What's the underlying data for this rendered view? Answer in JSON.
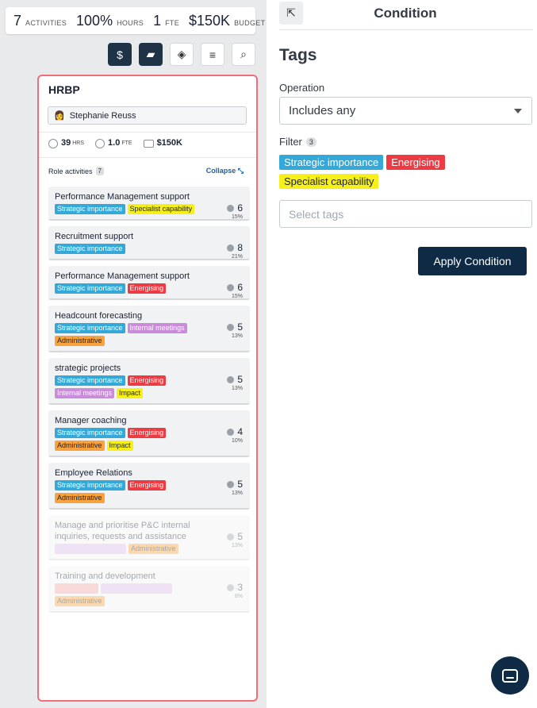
{
  "summary": {
    "activities_num": "7",
    "activities_unit": "ACTIVITIES",
    "hours_num": "100%",
    "hours_unit": "HOURS",
    "fte_num": "1",
    "fte_unit": "FTE",
    "budget_num": "$150K",
    "budget_unit": "BUDGET"
  },
  "toolbar": {
    "buttons": [
      {
        "icon": "dollar-icon",
        "glyph": "$",
        "active": true
      },
      {
        "icon": "tag-icon",
        "glyph": "▰",
        "active": true
      },
      {
        "icon": "layers-icon",
        "glyph": "◈",
        "active": false
      },
      {
        "icon": "filter-icon",
        "glyph": "≡",
        "active": false
      },
      {
        "icon": "search-icon",
        "glyph": "⌕",
        "active": false
      }
    ]
  },
  "role": {
    "title": "HRBP",
    "person": "Stephanie Reuss",
    "hours_value": "39",
    "hours_unit": "HRS",
    "fte_value": "1.0",
    "fte_unit": "FTE",
    "budget_value": "$150K",
    "activities_label": "Role activities",
    "activities_count": "7",
    "collapse_label": "Collapse"
  },
  "activities": [
    {
      "name": "Performance Management support",
      "hours": "6",
      "pct": "15%",
      "faded": false,
      "tags": [
        {
          "label": "Strategic importance",
          "color": "blue"
        },
        {
          "label": "Specialist capability",
          "color": "yellow"
        }
      ]
    },
    {
      "name": "Recruitment support",
      "hours": "8",
      "pct": "21%",
      "faded": false,
      "tags": [
        {
          "label": "Strategic importance",
          "color": "blue"
        }
      ]
    },
    {
      "name": "Performance Management support",
      "hours": "6",
      "pct": "15%",
      "faded": false,
      "tags": [
        {
          "label": "Strategic importance",
          "color": "blue"
        },
        {
          "label": "Energising",
          "color": "red"
        }
      ]
    },
    {
      "name": "Headcount forecasting",
      "hours": "5",
      "pct": "13%",
      "faded": false,
      "tags": [
        {
          "label": "Strategic importance",
          "color": "blue"
        },
        {
          "label": "Internal meetings",
          "color": "purple"
        },
        {
          "label": "Administrative",
          "color": "orange"
        }
      ]
    },
    {
      "name": "strategic projects",
      "hours": "5",
      "pct": "13%",
      "faded": false,
      "tags": [
        {
          "label": "Strategic importance",
          "color": "blue"
        },
        {
          "label": "Energising",
          "color": "red"
        },
        {
          "label": "Internal meetings",
          "color": "purple"
        },
        {
          "label": "Impact",
          "color": "yellow"
        }
      ]
    },
    {
      "name": "Manager coaching",
      "hours": "4",
      "pct": "10%",
      "faded": false,
      "tags": [
        {
          "label": "Strategic importance",
          "color": "blue"
        },
        {
          "label": "Energising",
          "color": "red"
        },
        {
          "label": "Administrative",
          "color": "orange"
        },
        {
          "label": "Impact",
          "color": "yellow"
        }
      ]
    },
    {
      "name": "Employee Relations",
      "hours": "5",
      "pct": "13%",
      "faded": false,
      "tags": [
        {
          "label": "Strategic importance",
          "color": "blue"
        },
        {
          "label": "Energising",
          "color": "red"
        },
        {
          "label": "Administrative",
          "color": "orange"
        }
      ]
    },
    {
      "name": "Manage and prioritise P&C internal inquiries, requests and assistance",
      "hours": "5",
      "pct": "13%",
      "faded": true,
      "tags": [
        {
          "label": "",
          "color": "ghost-purple"
        },
        {
          "label": "Administrative",
          "color": "orange"
        }
      ]
    },
    {
      "name": "Training and development",
      "hours": "3",
      "pct": "8%",
      "faded": true,
      "tags": [
        {
          "label": "",
          "color": "ghost-red"
        },
        {
          "label": "",
          "color": "ghost-purple"
        },
        {
          "label": "Administrative",
          "color": "orange"
        }
      ]
    }
  ],
  "condition": {
    "title": "Condition",
    "heading": "Tags",
    "operation_label": "Operation",
    "operation_value": "Includes any",
    "filter_label": "Filter",
    "filter_count": "3",
    "selected_tags": [
      {
        "label": "Strategic importance",
        "color": "blue"
      },
      {
        "label": "Energising",
        "color": "red"
      },
      {
        "label": "Specialist capability",
        "color": "yellow"
      }
    ],
    "tag_input_placeholder": "Select tags",
    "apply_label": "Apply Condition"
  },
  "colors": {
    "accent_dark": "#0e2a44",
    "card_border": "#f06d7a",
    "tag_blue": "#34a8d8",
    "tag_red": "#ed3b44",
    "tag_purple": "#c98cdb",
    "tag_orange": "#f7a23c",
    "tag_yellow": "#f7ef1a"
  }
}
